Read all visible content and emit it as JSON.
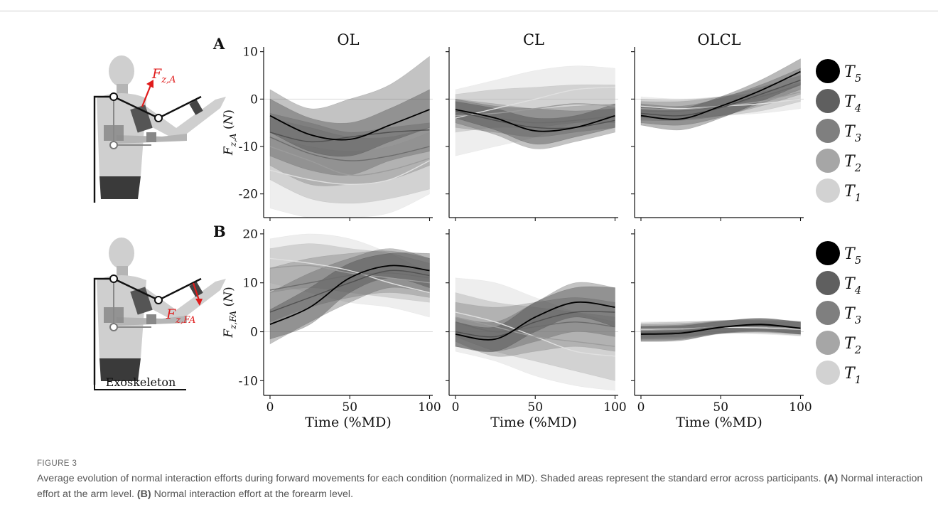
{
  "chart_data": [
    {
      "panel": "A",
      "condition": "OL",
      "type": "area",
      "ylabel": "F_{z,A} (N)",
      "xlabel": "",
      "ylim": [
        -25,
        11
      ],
      "xlim": [
        -4,
        102
      ],
      "yticks": [
        10,
        0,
        -10,
        -20
      ],
      "xticks": [
        0,
        50,
        100
      ],
      "x": [
        0,
        25,
        50,
        75,
        100
      ],
      "series": [
        {
          "name": "T5",
          "mean": [
            -3.5,
            -7.5,
            -8.5,
            -5.5,
            -2.2
          ],
          "lo": [
            -7,
            -11,
            -12,
            -9,
            -6
          ],
          "hi": [
            0,
            -4,
            -5,
            -2,
            2
          ]
        },
        {
          "name": "T4",
          "mean": [
            -7,
            -9,
            -8,
            -7,
            -6.5
          ],
          "lo": [
            -12,
            -15,
            -16,
            -13,
            -11
          ],
          "hi": [
            2,
            -2,
            0,
            3,
            9
          ]
        },
        {
          "name": "T3",
          "mean": [
            -8,
            -11.5,
            -13,
            -12,
            -10
          ],
          "lo": [
            -14,
            -18,
            -18,
            -17,
            -14
          ],
          "hi": [
            -3,
            -5,
            -7,
            -6,
            -5
          ]
        },
        {
          "name": "T2",
          "mean": [
            -10,
            -13,
            -16,
            -15,
            -12.5
          ],
          "lo": [
            -17,
            -21,
            -22,
            -21,
            -19
          ],
          "hi": [
            -4,
            -6,
            -8,
            -8,
            -6
          ]
        },
        {
          "name": "T1",
          "mean": [
            -15,
            -17,
            -18,
            -17,
            -13
          ],
          "lo": [
            -23,
            -25,
            -25,
            -24,
            -20
          ],
          "hi": [
            -8,
            -10,
            -11,
            -10,
            -7
          ]
        }
      ]
    },
    {
      "panel": "A",
      "condition": "CL",
      "type": "area",
      "ylabel": "",
      "xlabel": "",
      "ylim": [
        -25,
        11
      ],
      "xlim": [
        -4,
        102
      ],
      "x": [
        0,
        25,
        50,
        75,
        100
      ],
      "series": [
        {
          "name": "T5",
          "mean": [
            -2.2,
            -4,
            -6.7,
            -6,
            -3.5
          ],
          "lo": [
            -4,
            -6.5,
            -9.5,
            -8,
            -6
          ],
          "hi": [
            -0.5,
            -2,
            -4,
            -3.5,
            -1
          ]
        },
        {
          "name": "T4",
          "mean": [
            -2.5,
            -4.5,
            -6,
            -6,
            -4.5
          ],
          "lo": [
            -5,
            -7.5,
            -10.5,
            -9,
            -7
          ],
          "hi": [
            0,
            -1.5,
            -2,
            -2.5,
            -2
          ]
        },
        {
          "name": "T3",
          "mean": [
            -3,
            -4,
            -5,
            -4.5,
            -3.5
          ],
          "lo": [
            -6,
            -7,
            -8,
            -7,
            -6
          ],
          "hi": [
            0,
            -1,
            -2,
            -1.5,
            -1
          ]
        },
        {
          "name": "T2",
          "mean": [
            -3.5,
            -3,
            -2,
            -1,
            -1.5
          ],
          "lo": [
            -7,
            -6,
            -6,
            -5,
            -5
          ],
          "hi": [
            1,
            2,
            2.5,
            3,
            3
          ]
        },
        {
          "name": "T1",
          "mean": [
            -4,
            -2,
            0,
            2,
            2.5
          ],
          "lo": [
            -12,
            -10,
            -8,
            -5,
            -4
          ],
          "hi": [
            2,
            4,
            6,
            7,
            6.5
          ]
        }
      ]
    },
    {
      "panel": "A",
      "condition": "OLCL",
      "type": "area",
      "ylabel": "",
      "xlabel": "",
      "ylim": [
        -25,
        11
      ],
      "xlim": [
        -4,
        102
      ],
      "x": [
        0,
        25,
        50,
        75,
        100
      ],
      "series": [
        {
          "name": "T5",
          "mean": [
            -3.5,
            -4.2,
            -1.5,
            1.8,
            5.8
          ],
          "lo": [
            -5.5,
            -6.5,
            -4,
            -0.5,
            3
          ],
          "hi": [
            -1.5,
            -2,
            0.5,
            4,
            8.5
          ]
        },
        {
          "name": "T4",
          "mean": [
            -3,
            -3.5,
            -1.8,
            1,
            4
          ],
          "lo": [
            -5,
            -5.5,
            -3.8,
            -1,
            2
          ],
          "hi": [
            -1,
            -1.5,
            0.2,
            3,
            6.5
          ]
        },
        {
          "name": "T3",
          "mean": [
            -2.5,
            -2.5,
            -1.5,
            0.5,
            3
          ],
          "lo": [
            -4.5,
            -4.5,
            -3.5,
            -1.5,
            1
          ],
          "hi": [
            -0.5,
            -0.5,
            0.5,
            2.5,
            5
          ]
        },
        {
          "name": "T2",
          "mean": [
            -2,
            -2.2,
            -1.5,
            -0.5,
            1.5
          ],
          "lo": [
            -4,
            -4.2,
            -3.5,
            -2.5,
            -0.5
          ],
          "hi": [
            0,
            -0.2,
            0.5,
            1.5,
            3.5
          ]
        },
        {
          "name": "T1",
          "mean": [
            -1.5,
            -2,
            -1.5,
            -1,
            0
          ],
          "lo": [
            -3.5,
            -4,
            -3.5,
            -3,
            -2
          ],
          "hi": [
            0.5,
            0,
            0.5,
            1,
            2
          ]
        }
      ]
    },
    {
      "panel": "B",
      "condition": "OL",
      "type": "area",
      "ylabel": "F_{z,FA} (N)",
      "xlabel": "Time (%MD)",
      "ylim": [
        -13,
        21
      ],
      "xlim": [
        -4,
        102
      ],
      "yticks": [
        20,
        10,
        0,
        -10
      ],
      "xticks": [
        0,
        50,
        100
      ],
      "x": [
        0,
        25,
        50,
        75,
        100
      ],
      "series": [
        {
          "name": "T5",
          "mean": [
            1.5,
            5,
            11,
            13.5,
            12.5
          ],
          "lo": [
            -1.5,
            1.5,
            8,
            11,
            9
          ],
          "hi": [
            4.5,
            9,
            14,
            16,
            16
          ]
        },
        {
          "name": "T4",
          "mean": [
            4,
            7,
            10,
            12.5,
            11.5
          ],
          "lo": [
            -2.5,
            2,
            6,
            9,
            8
          ],
          "hi": [
            8,
            12,
            15,
            17,
            15
          ]
        },
        {
          "name": "T3",
          "mean": [
            8.5,
            10,
            11.5,
            12,
            11
          ],
          "lo": [
            2,
            5,
            7,
            8,
            7
          ],
          "hi": [
            13,
            15,
            16,
            16.5,
            15
          ]
        },
        {
          "name": "T2",
          "mean": [
            13,
            13.5,
            12,
            11,
            10
          ],
          "lo": [
            8,
            9,
            8,
            7,
            6
          ],
          "hi": [
            17,
            18,
            17,
            16,
            14
          ]
        },
        {
          "name": "T1",
          "mean": [
            15,
            14,
            12.5,
            10,
            8
          ],
          "lo": [
            10,
            8,
            6,
            5,
            3
          ],
          "hi": [
            19,
            20,
            19,
            16,
            12
          ]
        }
      ]
    },
    {
      "panel": "B",
      "condition": "CL",
      "type": "area",
      "ylabel": "",
      "xlabel": "Time (%MD)",
      "ylim": [
        -13,
        21
      ],
      "xlim": [
        -4,
        102
      ],
      "x": [
        0,
        25,
        50,
        75,
        100
      ],
      "series": [
        {
          "name": "T5",
          "mean": [
            -0.5,
            -1.5,
            3,
            6,
            5
          ],
          "lo": [
            -3,
            -4,
            0,
            3,
            1
          ],
          "hi": [
            2,
            1,
            6,
            9,
            9
          ]
        },
        {
          "name": "T4",
          "mean": [
            0,
            -1,
            2,
            4,
            4
          ],
          "lo": [
            -3,
            -4,
            -2,
            0,
            -1
          ],
          "hi": [
            3,
            2,
            6,
            10,
            9
          ]
        },
        {
          "name": "T3",
          "mean": [
            2,
            0,
            1,
            2,
            1
          ],
          "lo": [
            -2,
            -5,
            -4,
            -3,
            -4
          ],
          "hi": [
            6,
            5,
            6,
            7,
            6
          ]
        },
        {
          "name": "T2",
          "mean": [
            3,
            1,
            -1,
            -2,
            -3
          ],
          "lo": [
            -1,
            -4,
            -6,
            -8,
            -10
          ],
          "hi": [
            8,
            6,
            5,
            4,
            3
          ]
        },
        {
          "name": "T1",
          "mean": [
            4,
            2,
            -1,
            -4,
            -5
          ],
          "lo": [
            -4,
            -6,
            -9,
            -11,
            -12
          ],
          "hi": [
            11,
            10,
            7,
            4,
            2
          ]
        }
      ]
    },
    {
      "panel": "B",
      "condition": "OLCL",
      "type": "area",
      "ylabel": "",
      "xlabel": "Time (%MD)",
      "ylim": [
        -13,
        21
      ],
      "xlim": [
        -4,
        102
      ],
      "x": [
        0,
        25,
        50,
        75,
        100
      ],
      "series": [
        {
          "name": "T5",
          "mean": [
            -0.5,
            -0.3,
            0.9,
            1.5,
            0.7
          ],
          "lo": [
            -2,
            -1.8,
            -0.3,
            0.2,
            -0.5
          ],
          "hi": [
            1,
            1.2,
            2.1,
            2.8,
            1.9
          ]
        },
        {
          "name": "T4",
          "mean": [
            -0.3,
            -0.1,
            0.9,
            1.3,
            0.8
          ],
          "lo": [
            -1.8,
            -1.6,
            -0.4,
            0,
            -0.5
          ],
          "hi": [
            1.2,
            1.4,
            2.2,
            2.6,
            2.1
          ]
        },
        {
          "name": "T3",
          "mean": [
            0,
            0.2,
            1,
            1.2,
            0.8
          ],
          "lo": [
            -1.5,
            -1.3,
            -0.3,
            -0.1,
            -0.5
          ],
          "hi": [
            1.5,
            1.7,
            2.3,
            2.5,
            2.1
          ]
        },
        {
          "name": "T2",
          "mean": [
            0.3,
            0.5,
            1,
            1,
            0.6
          ],
          "lo": [
            -1.2,
            -1,
            -0.3,
            -0.3,
            -0.8
          ],
          "hi": [
            1.8,
            2,
            2.3,
            2.3,
            2
          ]
        },
        {
          "name": "T1",
          "mean": [
            0.5,
            0.6,
            0.9,
            0.8,
            0.5
          ],
          "lo": [
            -1,
            -0.9,
            -0.4,
            -0.5,
            -0.9
          ],
          "hi": [
            2,
            2.1,
            2.2,
            2.1,
            1.9
          ]
        }
      ]
    }
  ],
  "figure": {
    "panel_labels": [
      "A",
      "B"
    ],
    "columns": [
      "OL",
      "CL",
      "OLCL"
    ],
    "legend": [
      {
        "name": "T",
        "sub": "5",
        "color": "#000000"
      },
      {
        "name": "T",
        "sub": "4",
        "color": "#5f5f5f"
      },
      {
        "name": "T",
        "sub": "3",
        "color": "#7f7f7f"
      },
      {
        "name": "T",
        "sub": "2",
        "color": "#a6a6a6"
      },
      {
        "name": "T",
        "sub": "1",
        "color": "#d2d2d2"
      }
    ],
    "illustration": {
      "force_label_arm": {
        "main": "F",
        "sub": "z,A"
      },
      "force_label_forearm": {
        "main": "F",
        "sub": "z,FA"
      },
      "exoskeleton_label": "Exoskeleton",
      "force_color": "#e01b1b"
    }
  },
  "caption": {
    "label": "FIGURE 3",
    "text": "Average evolution of normal interaction efforts during forward movements for each condition (normalized in MD). Shaded areas represent the standard error across participants.",
    "a_tag": "(A)",
    "a_text": "Normal interaction effort at the arm level.",
    "b_tag": "(B)",
    "b_text": "Normal interaction effort at the forearm level."
  }
}
